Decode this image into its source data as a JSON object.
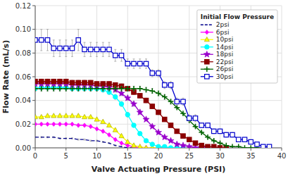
{
  "chart_data": {
    "type": "line",
    "title": "Initial Flow Pressure",
    "x_label": "Valve Actuating Pressure (PSI)",
    "y_label": "Flow Rate (mL/s)",
    "xlim": [
      0,
      40
    ],
    "ylim": [
      0,
      0.12
    ],
    "xticks": [
      0,
      5,
      10,
      15,
      20,
      25,
      30,
      35,
      40
    ],
    "yticks": [
      {
        "value": 0,
        "label": "0.00"
      },
      0.02,
      0.04,
      0.06,
      0.08,
      {
        "value": 0.1,
        "label": "0.10"
      },
      0.12
    ],
    "grid": true,
    "legend": "upper right",
    "series": [
      {
        "name": "2psi",
        "color": "#00008B",
        "marker": "none",
        "line_style": "dashed",
        "x": [
          0,
          1,
          2,
          3,
          4,
          5,
          6,
          7,
          8,
          9,
          10,
          11,
          12,
          13,
          14,
          15,
          16
        ],
        "values": [
          0.009,
          0.009,
          0.009,
          0.009,
          0.008,
          0.008,
          0.008,
          0.007,
          0.007,
          0.006,
          0.006,
          0.005,
          0.004,
          0.002,
          0.001,
          0.0,
          0.0
        ],
        "errors": [
          0.0005,
          0.0005,
          0.0005,
          0.0005,
          0.0005,
          0.0005,
          0.0005,
          0.0005,
          0.0005,
          0.0005,
          0.0005,
          0.0005,
          0.0005,
          0.0005,
          0.0005,
          0.0,
          0.0
        ]
      },
      {
        "name": "6psi",
        "color": "#FF00FF",
        "marker": "diamond",
        "line_style": "solid",
        "x": [
          0,
          1,
          2,
          3,
          4,
          5,
          6,
          7,
          8,
          9,
          10,
          11,
          12,
          13,
          14,
          15,
          16,
          17,
          18
        ],
        "values": [
          0.02,
          0.02,
          0.02,
          0.02,
          0.02,
          0.02,
          0.02,
          0.019,
          0.019,
          0.018,
          0.016,
          0.014,
          0.011,
          0.007,
          0.004,
          0.002,
          0.001,
          0.0,
          0.0
        ],
        "errors": [
          0.001,
          0.001,
          0.001,
          0.001,
          0.001,
          0.001,
          0.001,
          0.001,
          0.001,
          0.001,
          0.001,
          0.001,
          0.001,
          0.001,
          0.001,
          0.001,
          0.0,
          0.0,
          0.0
        ]
      },
      {
        "name": "10psi",
        "color": "#FFFF00",
        "marker": "triangle",
        "line_style": "solid",
        "x": [
          0,
          1,
          2,
          3,
          4,
          5,
          6,
          7,
          8,
          9,
          10,
          11,
          12,
          13,
          14,
          15,
          16,
          17,
          18,
          19,
          20
        ],
        "values": [
          0.026,
          0.026,
          0.027,
          0.027,
          0.027,
          0.027,
          0.027,
          0.027,
          0.026,
          0.026,
          0.024,
          0.022,
          0.019,
          0.015,
          0.01,
          0.005,
          0.002,
          0.001,
          0.0,
          0.0,
          0.0
        ],
        "errors": [
          0.001,
          0.001,
          0.001,
          0.001,
          0.001,
          0.001,
          0.001,
          0.001,
          0.001,
          0.001,
          0.001,
          0.001,
          0.001,
          0.001,
          0.001,
          0.001,
          0.001,
          0.0,
          0.0,
          0.0,
          0.0
        ]
      },
      {
        "name": "14psi",
        "color": "#00FFFF",
        "marker": "circle",
        "line_style": "solid",
        "x": [
          0,
          1,
          2,
          3,
          4,
          5,
          6,
          7,
          8,
          9,
          10,
          11,
          12,
          13,
          14,
          15,
          16,
          17,
          18,
          19,
          20,
          21,
          22,
          23,
          24
        ],
        "values": [
          0.05,
          0.051,
          0.051,
          0.051,
          0.051,
          0.051,
          0.05,
          0.05,
          0.05,
          0.05,
          0.05,
          0.049,
          0.047,
          0.043,
          0.037,
          0.028,
          0.019,
          0.012,
          0.006,
          0.003,
          0.001,
          0.001,
          0.0,
          0.0,
          0.0
        ],
        "errors": [
          0.002,
          0.002,
          0.002,
          0.002,
          0.002,
          0.002,
          0.002,
          0.002,
          0.002,
          0.002,
          0.002,
          0.002,
          0.002,
          0.002,
          0.002,
          0.002,
          0.001,
          0.001,
          0.001,
          0.001,
          0.0,
          0.0,
          0.0,
          0.0,
          0.0
        ]
      },
      {
        "name": "18psi",
        "color": "#9900CC",
        "marker": "star",
        "line_style": "solid",
        "x": [
          0,
          1,
          2,
          3,
          4,
          5,
          6,
          7,
          8,
          9,
          10,
          11,
          12,
          13,
          14,
          15,
          16,
          17,
          18,
          19,
          20,
          21,
          22,
          23,
          24,
          25,
          26,
          27,
          28
        ],
        "values": [
          0.054,
          0.054,
          0.054,
          0.054,
          0.054,
          0.054,
          0.053,
          0.053,
          0.053,
          0.053,
          0.052,
          0.052,
          0.051,
          0.049,
          0.046,
          0.042,
          0.037,
          0.03,
          0.024,
          0.018,
          0.013,
          0.009,
          0.006,
          0.003,
          0.002,
          0.001,
          0.0,
          0.0,
          0.0
        ],
        "errors": [
          0.002,
          0.002,
          0.002,
          0.002,
          0.002,
          0.002,
          0.002,
          0.002,
          0.002,
          0.002,
          0.002,
          0.002,
          0.002,
          0.002,
          0.002,
          0.002,
          0.002,
          0.002,
          0.001,
          0.001,
          0.001,
          0.001,
          0.001,
          0.001,
          0.0,
          0.0,
          0.0,
          0.0,
          0.0
        ]
      },
      {
        "name": "22psi",
        "color": "#8B0000",
        "marker": "square",
        "line_style": "solid",
        "x": [
          0,
          1,
          2,
          3,
          4,
          5,
          6,
          7,
          8,
          9,
          10,
          11,
          12,
          13,
          14,
          15,
          16,
          17,
          18,
          19,
          20,
          21,
          22,
          23,
          24,
          25,
          26,
          27,
          28,
          29,
          30,
          31
        ],
        "values": [
          0.056,
          0.056,
          0.056,
          0.056,
          0.056,
          0.056,
          0.055,
          0.055,
          0.055,
          0.055,
          0.054,
          0.054,
          0.054,
          0.053,
          0.052,
          0.05,
          0.047,
          0.044,
          0.04,
          0.035,
          0.03,
          0.024,
          0.019,
          0.014,
          0.01,
          0.007,
          0.004,
          0.002,
          0.001,
          0.001,
          0.0,
          0.0
        ],
        "errors": [
          0.002,
          0.002,
          0.002,
          0.002,
          0.002,
          0.002,
          0.002,
          0.002,
          0.002,
          0.002,
          0.002,
          0.002,
          0.002,
          0.002,
          0.002,
          0.002,
          0.002,
          0.002,
          0.002,
          0.002,
          0.002,
          0.001,
          0.001,
          0.001,
          0.001,
          0.001,
          0.001,
          0.001,
          0.0,
          0.0,
          0.0,
          0.0
        ]
      },
      {
        "name": "26psi",
        "color": "#006400",
        "marker": "plus",
        "line_style": "solid",
        "x": [
          0,
          1,
          2,
          3,
          4,
          5,
          6,
          7,
          8,
          9,
          10,
          11,
          12,
          13,
          14,
          15,
          16,
          17,
          18,
          19,
          20,
          21,
          22,
          23,
          24,
          25,
          26,
          27,
          28,
          29,
          30,
          31,
          32,
          33,
          34,
          35,
          36
        ],
        "values": [
          0.05,
          0.05,
          0.05,
          0.05,
          0.05,
          0.05,
          0.05,
          0.05,
          0.05,
          0.05,
          0.05,
          0.05,
          0.05,
          0.05,
          0.05,
          0.05,
          0.05,
          0.05,
          0.049,
          0.048,
          0.046,
          0.043,
          0.039,
          0.034,
          0.029,
          0.023,
          0.018,
          0.013,
          0.009,
          0.006,
          0.004,
          0.002,
          0.001,
          0.001,
          0.0,
          0.0,
          0.0
        ],
        "errors": [
          0.002,
          0.002,
          0.002,
          0.002,
          0.002,
          0.002,
          0.002,
          0.002,
          0.002,
          0.002,
          0.002,
          0.002,
          0.002,
          0.002,
          0.002,
          0.002,
          0.002,
          0.002,
          0.002,
          0.002,
          0.002,
          0.002,
          0.002,
          0.001,
          0.001,
          0.001,
          0.001,
          0.001,
          0.001,
          0.001,
          0.001,
          0.0,
          0.0,
          0.0,
          0.0,
          0.0,
          0.0
        ]
      },
      {
        "name": "30psi",
        "color": "#0000CD",
        "marker": "open-square",
        "line_style": "solid",
        "x": [
          0,
          1,
          2,
          3,
          4,
          5,
          6,
          7,
          8,
          9,
          10,
          11,
          12,
          13,
          14,
          15,
          16,
          17,
          18,
          19,
          20,
          21,
          22,
          23,
          24,
          25,
          26,
          27,
          28,
          29,
          30,
          31,
          32,
          33,
          34,
          35,
          36,
          37,
          38
        ],
        "values": [
          0.091,
          0.091,
          0.091,
          0.084,
          0.084,
          0.084,
          0.084,
          0.091,
          0.083,
          0.083,
          0.083,
          0.083,
          0.083,
          0.078,
          0.078,
          0.071,
          0.071,
          0.071,
          0.071,
          0.063,
          0.063,
          0.053,
          0.053,
          0.039,
          0.039,
          0.025,
          0.025,
          0.019,
          0.019,
          0.014,
          0.014,
          0.011,
          0.011,
          0.007,
          0.007,
          0.005,
          0.003,
          0.001,
          0.001
        ],
        "errors": [
          0.009,
          0.009,
          0.009,
          0.007,
          0.007,
          0.007,
          0.007,
          0.009,
          0.006,
          0.006,
          0.006,
          0.006,
          0.006,
          0.005,
          0.005,
          0.004,
          0.004,
          0.004,
          0.004,
          0.003,
          0.003,
          0.003,
          0.003,
          0.003,
          0.003,
          0.003,
          0.003,
          0.002,
          0.002,
          0.002,
          0.002,
          0.002,
          0.002,
          0.001,
          0.001,
          0.001,
          0.001,
          0.001,
          0.001
        ]
      }
    ]
  }
}
